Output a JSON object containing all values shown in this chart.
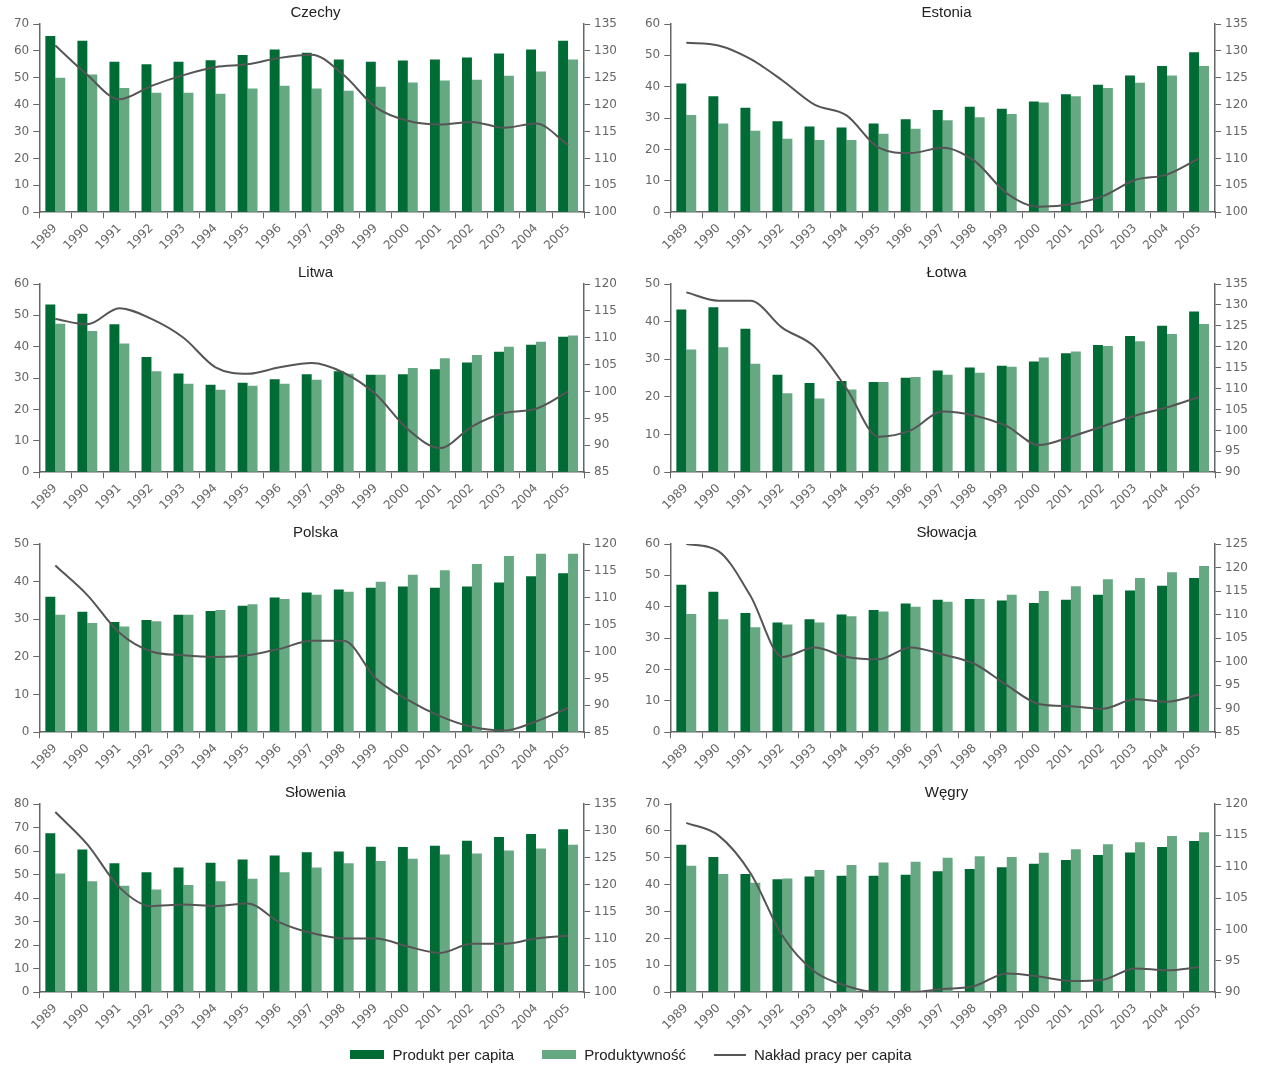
{
  "chart_data": [
    {
      "type": "bar",
      "title": "Czechy",
      "categories": [
        "1989",
        "1990",
        "1991",
        "1992",
        "1993",
        "1994",
        "1995",
        "1996",
        "1997",
        "1998",
        "1999",
        "2000",
        "2001",
        "2002",
        "2003",
        "2004",
        "2005"
      ],
      "ylim": [
        0,
        70
      ],
      "yticks": [
        0,
        10,
        20,
        30,
        40,
        50,
        60,
        70
      ],
      "y2lim": [
        100,
        135
      ],
      "y2ticks": [
        100,
        105,
        110,
        115,
        120,
        125,
        130,
        135
      ],
      "marker": "none",
      "series": [
        {
          "color": "#006b35",
          "values": [
            65.5,
            63.8,
            56,
            55,
            56,
            56.5,
            58.5,
            60.5,
            59.3,
            56.8,
            56,
            56.4,
            56.8,
            57.5,
            59,
            60.5,
            63.8
          ]
        },
        {
          "color": "#66a882",
          "values": [
            50,
            51.2,
            46.2,
            44.4,
            44.4,
            44.1,
            46,
            47,
            46,
            45.2,
            46.7,
            48.2,
            49,
            49.3,
            50.8,
            52.3,
            56.8
          ]
        },
        {
          "type": "line",
          "axis": "y2",
          "color": "#555555",
          "values": [
            131,
            125.5,
            121,
            123.5,
            125.5,
            127,
            127.5,
            128.7,
            129.3,
            125.5,
            119.5,
            117,
            116.3,
            116.8,
            115.7,
            116.5,
            112.5
          ]
        }
      ]
    },
    {
      "type": "bar",
      "title": "Estonia",
      "categories": [
        "1989",
        "1990",
        "1991",
        "1992",
        "1993",
        "1994",
        "1995",
        "1996",
        "1997",
        "1998",
        "1999",
        "2000",
        "2001",
        "2002",
        "2003",
        "2004",
        "2005"
      ],
      "ylim": [
        0,
        60
      ],
      "yticks": [
        0,
        10,
        20,
        30,
        40,
        50,
        60
      ],
      "y2lim": [
        100,
        135
      ],
      "y2ticks": [
        100,
        105,
        110,
        115,
        120,
        125,
        130,
        135
      ],
      "marker": "none",
      "series": [
        {
          "color": "#006b35",
          "values": [
            41,
            37,
            33.3,
            29,
            27.3,
            27,
            28.3,
            29.6,
            32.6,
            33.6,
            33,
            35.3,
            37.6,
            40.6,
            43.6,
            46.6,
            51
          ]
        },
        {
          "color": "#66a882",
          "values": [
            31,
            28.3,
            26,
            23.4,
            23,
            23,
            25,
            26.6,
            29.3,
            30.3,
            31.3,
            35,
            37,
            39.6,
            41.3,
            43.6,
            46.6
          ]
        },
        {
          "type": "line",
          "axis": "y2",
          "color": "#555555",
          "values": [
            131.5,
            131,
            128.5,
            124.5,
            120,
            118,
            112,
            111,
            112,
            109.5,
            103.5,
            101,
            101.5,
            103,
            106,
            107,
            110
          ]
        }
      ]
    },
    {
      "type": "bar",
      "title": "Litwa",
      "categories": [
        "1989",
        "1990",
        "1991",
        "1992",
        "1993",
        "1994",
        "1995",
        "1996",
        "1997",
        "1998",
        "1999",
        "2000",
        "2001",
        "2002",
        "2003",
        "2004",
        "2005"
      ],
      "ylim": [
        0,
        60
      ],
      "yticks": [
        0,
        10,
        20,
        30,
        40,
        50,
        60
      ],
      "y2lim": [
        85,
        120
      ],
      "y2ticks": [
        85,
        90,
        95,
        100,
        105,
        110,
        115,
        120
      ],
      "marker": "none",
      "series": [
        {
          "color": "#006b35",
          "values": [
            53.5,
            50.5,
            47.2,
            36.7,
            31.5,
            27.9,
            28.5,
            29.6,
            31.2,
            32.2,
            31.1,
            31.2,
            32.8,
            35,
            38.4,
            40.6,
            43.2
          ]
        },
        {
          "color": "#66a882",
          "values": [
            47.3,
            45,
            41,
            32.2,
            28.2,
            26.3,
            27.6,
            28.2,
            29.5,
            31.4,
            31.1,
            33.2,
            36.3,
            37.4,
            40,
            41.6,
            43.6
          ]
        },
        {
          "type": "line",
          "axis": "y2",
          "color": "#555555",
          "values": [
            113.5,
            112.5,
            115.5,
            113.5,
            110,
            104.5,
            103.3,
            104.5,
            105.3,
            103.5,
            99.5,
            93,
            89.5,
            93.5,
            96,
            96.8,
            100
          ]
        }
      ]
    },
    {
      "type": "bar",
      "title": "Łotwa",
      "categories": [
        "1989",
        "1990",
        "1991",
        "1992",
        "1993",
        "1994",
        "1995",
        "1996",
        "1997",
        "1998",
        "1999",
        "2000",
        "2001",
        "2002",
        "2003",
        "2004",
        "2005"
      ],
      "ylim": [
        0,
        50
      ],
      "yticks": [
        0,
        10,
        20,
        30,
        40,
        50
      ],
      "y2lim": [
        90,
        135
      ],
      "y2ticks": [
        90,
        95,
        100,
        105,
        110,
        115,
        120,
        125,
        130,
        135
      ],
      "marker": "none",
      "series": [
        {
          "color": "#006b35",
          "values": [
            43.2,
            43.8,
            38.1,
            25.9,
            23.7,
            24.2,
            24,
            25.1,
            27,
            27.8,
            28.3,
            29.4,
            31.6,
            33.8,
            36.2,
            38.9,
            42.7
          ]
        },
        {
          "color": "#66a882",
          "values": [
            32.6,
            33.2,
            28.8,
            21,
            19.6,
            22,
            24,
            25.3,
            25.9,
            26.4,
            28,
            30.5,
            32.1,
            33.5,
            34.8,
            36.7,
            39.4
          ]
        },
        {
          "type": "line",
          "axis": "y2",
          "color": "#555555",
          "values": [
            133,
            131,
            131,
            124.5,
            120,
            110,
            98.5,
            100,
            104.5,
            103.5,
            101,
            96.5,
            98.5,
            101,
            103.5,
            105.5,
            108
          ]
        }
      ]
    },
    {
      "type": "bar",
      "title": "Polska",
      "categories": [
        "1989",
        "1990",
        "1991",
        "1992",
        "1993",
        "1994",
        "1995",
        "1996",
        "1997",
        "1998",
        "1999",
        "2000",
        "2001",
        "2002",
        "2003",
        "2004",
        "2005"
      ],
      "ylim": [
        0,
        50
      ],
      "yticks": [
        0,
        10,
        20,
        30,
        40,
        50
      ],
      "y2lim": [
        85,
        120
      ],
      "y2ticks": [
        85,
        90,
        95,
        100,
        105,
        110,
        115,
        120
      ],
      "marker": "none",
      "series": [
        {
          "color": "#006b35",
          "values": [
            36,
            32,
            29.3,
            29.8,
            31.2,
            32.2,
            33.6,
            35.8,
            37.1,
            37.9,
            38.4,
            38.7,
            38.4,
            38.7,
            39.8,
            41.4,
            42.2
          ]
        },
        {
          "color": "#66a882",
          "values": [
            31.2,
            29,
            28.1,
            29.5,
            31.2,
            32.5,
            34,
            35.4,
            36.5,
            37.3,
            40,
            41.8,
            43,
            44.7,
            46.8,
            47.4,
            47.4
          ]
        },
        {
          "type": "line",
          "axis": "y2",
          "color": "#555555",
          "values": [
            116,
            110.5,
            103.5,
            100,
            99.3,
            99,
            99.3,
            100.5,
            102,
            102,
            95,
            91,
            88,
            86,
            85.3,
            87,
            89.5
          ]
        }
      ]
    },
    {
      "type": "bar",
      "title": "Słowacja",
      "categories": [
        "1989",
        "1990",
        "1991",
        "1992",
        "1993",
        "1994",
        "1995",
        "1996",
        "1997",
        "1998",
        "1999",
        "2000",
        "2001",
        "2002",
        "2003",
        "2004",
        "2005"
      ],
      "ylim": [
        0,
        60
      ],
      "yticks": [
        0,
        10,
        20,
        30,
        40,
        50,
        60
      ],
      "y2lim": [
        85,
        125
      ],
      "y2ticks": [
        85,
        90,
        95,
        100,
        105,
        110,
        115,
        120,
        125
      ],
      "marker": "none",
      "series": [
        {
          "color": "#006b35",
          "values": [
            47,
            44.8,
            38,
            35,
            36,
            37.5,
            39,
            41,
            42.2,
            42.5,
            42,
            41.2,
            42.2,
            43.8,
            45.2,
            46.7,
            49.2
          ]
        },
        {
          "color": "#66a882",
          "values": [
            37.7,
            36,
            33.5,
            34.3,
            35,
            37,
            38.5,
            40,
            41.6,
            42.5,
            43.8,
            45,
            46.5,
            48.8,
            49.2,
            51,
            53
          ]
        },
        {
          "type": "line",
          "axis": "y2",
          "color": "#555555",
          "values": [
            125,
            123.5,
            114,
            101,
            103,
            101,
            100.5,
            103,
            101.5,
            99.5,
            95,
            91,
            90.5,
            90,
            92,
            91.5,
            93
          ]
        }
      ]
    },
    {
      "type": "bar",
      "title": "Słowenia",
      "categories": [
        "1989",
        "1990",
        "1991",
        "1992",
        "1993",
        "1994",
        "1995",
        "1996",
        "1997",
        "1998",
        "1999",
        "2000",
        "2001",
        "2002",
        "2003",
        "2004",
        "2005"
      ],
      "ylim": [
        0,
        80
      ],
      "yticks": [
        0,
        10,
        20,
        30,
        40,
        50,
        60,
        70,
        80
      ],
      "y2lim": [
        100,
        135
      ],
      "y2ticks": [
        100,
        105,
        110,
        115,
        120,
        125,
        130,
        135
      ],
      "marker": "none",
      "series": [
        {
          "color": "#006b35",
          "values": [
            67.6,
            60.7,
            54.8,
            51,
            53,
            55,
            56.4,
            58.1,
            59.5,
            59.8,
            61.8,
            61.7,
            62.3,
            64.4,
            66,
            67.3,
            69.3
          ]
        },
        {
          "color": "#66a882",
          "values": [
            50.5,
            47.2,
            45.3,
            43.7,
            45.6,
            47.2,
            48.2,
            51,
            53,
            54.8,
            55.8,
            56.7,
            58.5,
            59,
            60.2,
            61.1,
            62.7
          ]
        },
        {
          "type": "line",
          "axis": "y2",
          "color": "#555555",
          "values": [
            133.5,
            127.5,
            119.5,
            116,
            116.3,
            116,
            116.5,
            113,
            111,
            110,
            110,
            108.5,
            107.3,
            109,
            109,
            110,
            110.5
          ]
        }
      ]
    },
    {
      "type": "bar",
      "title": "Węgry",
      "categories": [
        "1989",
        "1990",
        "1991",
        "1992",
        "1993",
        "1994",
        "1995",
        "1996",
        "1997",
        "1998",
        "1999",
        "2000",
        "2001",
        "2002",
        "2003",
        "2004",
        "2005"
      ],
      "ylim": [
        0,
        70
      ],
      "yticks": [
        0,
        10,
        20,
        30,
        40,
        50,
        60,
        70
      ],
      "y2lim": [
        90,
        120
      ],
      "y2ticks": [
        90,
        95,
        100,
        105,
        110,
        115,
        120
      ],
      "marker": "none",
      "legend": "bottom",
      "series": [
        {
          "name": "Produkt per capita",
          "color": "#006b35",
          "values": [
            54.8,
            50.3,
            44,
            42,
            43,
            43.3,
            43.3,
            43.7,
            45,
            45.8,
            46.5,
            47.8,
            49.2,
            51,
            52,
            54,
            56.2
          ]
        },
        {
          "name": "Produktywność",
          "color": "#66a882",
          "values": [
            47,
            44,
            40.7,
            42.3,
            45.5,
            47.3,
            48.2,
            48.5,
            50,
            50.6,
            50.3,
            51.9,
            53.2,
            55,
            55.8,
            58.1,
            59.5
          ]
        },
        {
          "type": "line",
          "name": "Nakład pracy per capita",
          "axis": "y2",
          "color": "#555555",
          "values": [
            117,
            115,
            109,
            99,
            93.3,
            91,
            90,
            90,
            90.5,
            91,
            93,
            92.5,
            91.8,
            92,
            93.8,
            93.5,
            94
          ]
        }
      ]
    }
  ]
}
